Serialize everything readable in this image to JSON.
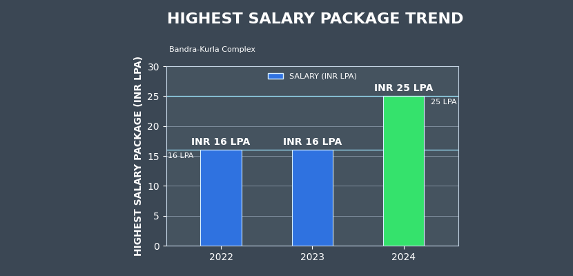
{
  "chart_data": {
    "type": "bar",
    "title": "HIGHEST SALARY PACKAGE TREND",
    "subtitle": "Bandra-Kurla Complex",
    "y_label": "HIGHEST SALARY PACKAGE (INR LPA)",
    "categories": [
      "2022",
      "2023",
      "2024"
    ],
    "series": [
      {
        "name": "SALARY (INR LPA)",
        "values": [
          16,
          16,
          25
        ],
        "colors": [
          "#2f72e0",
          "#2f72e0",
          "#35e26c"
        ]
      }
    ],
    "value_labels": [
      "INR 16 LPA",
      "INR 16 LPA",
      "INR 25 LPA"
    ],
    "data_labels": true,
    "reference_lines": [
      {
        "value": 16,
        "label": "16 LPA"
      },
      {
        "value": 25,
        "label": "25 LPA"
      }
    ],
    "ylim": [
      0,
      30
    ],
    "yticks": [
      0,
      5,
      10,
      15,
      20,
      25,
      30
    ],
    "grid": true,
    "legend": "upper center"
  }
}
